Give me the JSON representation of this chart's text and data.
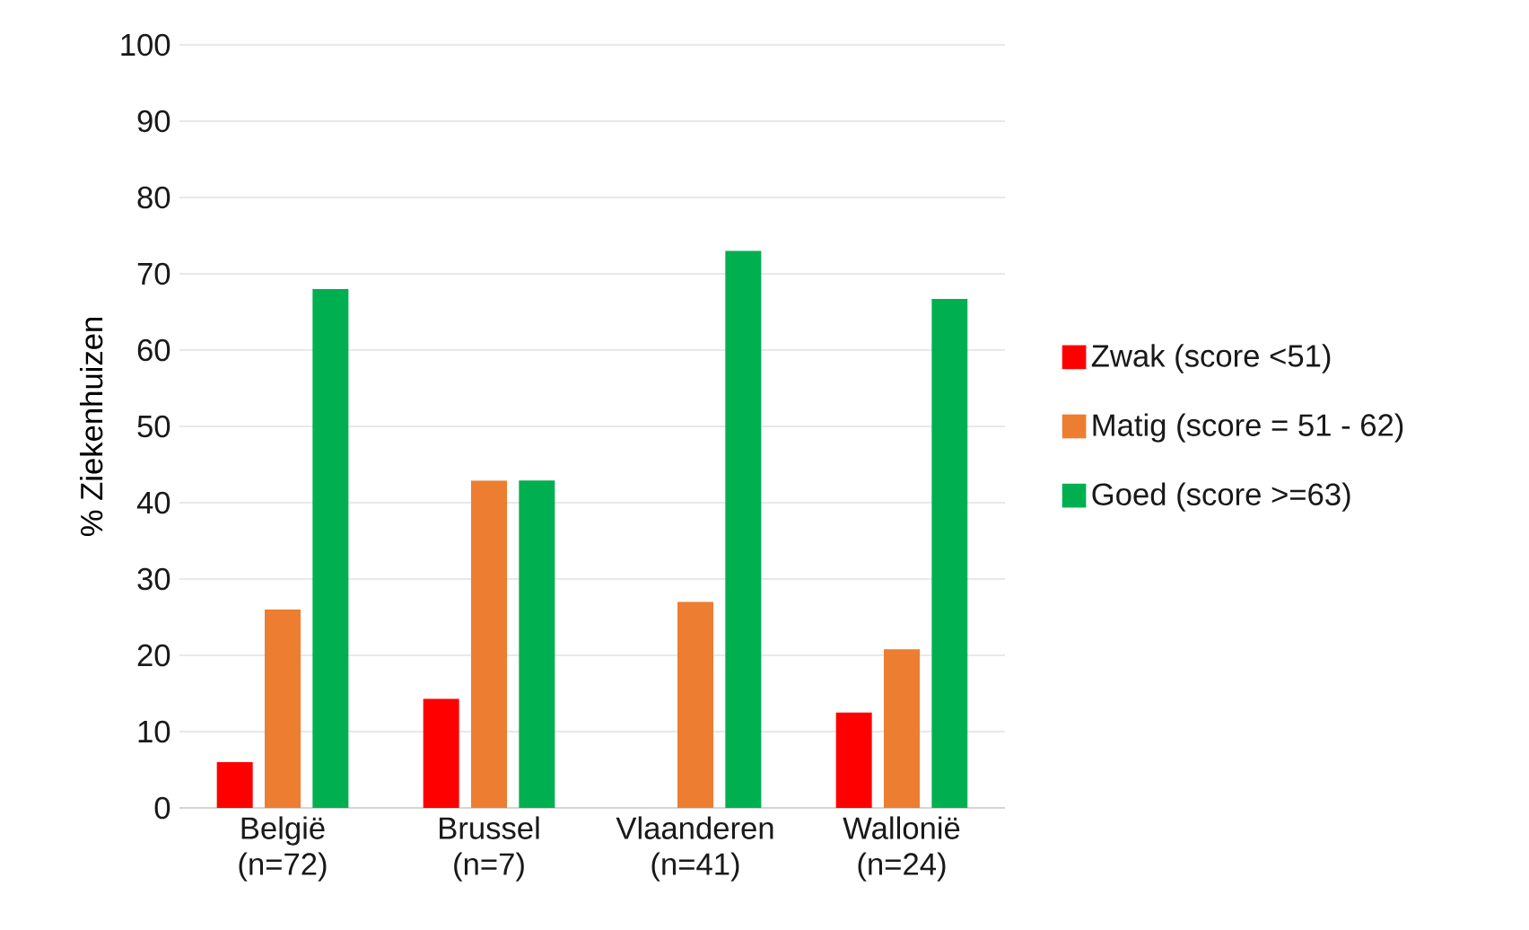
{
  "chart_data": {
    "type": "bar",
    "ylabel": "% Ziekenhuizen",
    "categories": [
      "België (n=72)",
      "Brussel (n=7)",
      "Vlaanderen (n=41)",
      "Wallonië (n=24)"
    ],
    "series": [
      {
        "name": "Zwak (score <51)",
        "color": "#ff0000",
        "values": [
          6,
          14.3,
          0,
          12.5
        ]
      },
      {
        "name": "Matig (score = 51 - 62)",
        "color": "#ed7d31",
        "values": [
          26,
          42.9,
          27,
          20.8
        ]
      },
      {
        "name": "Goed (score >=63)",
        "color": "#00b050",
        "values": [
          68,
          42.9,
          73,
          66.7
        ]
      }
    ],
    "ylim": [
      0,
      100
    ],
    "yticks": [
      0,
      10,
      20,
      30,
      40,
      50,
      60,
      70,
      80,
      90,
      100
    ],
    "grid": "y",
    "legend": "right"
  }
}
